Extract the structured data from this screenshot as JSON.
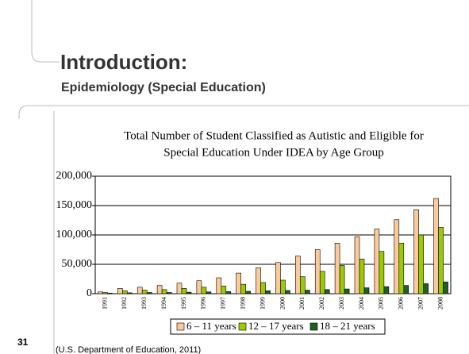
{
  "slide": {
    "title": "Introduction:",
    "subtitle": "Epidemiology (Special Education)",
    "number": "31",
    "source": "(U.S. Department of Education, 2011)"
  },
  "chart_data": {
    "type": "bar",
    "title_lines": [
      "Total Number of Student Classified as Autistic and Eligible for",
      "Special Education Under IDEA by Age Group"
    ],
    "categories": [
      "1991",
      "1992",
      "1993",
      "1994",
      "1995",
      "1996",
      "1997",
      "1998",
      "1999",
      "2000",
      "2001",
      "2002",
      "2003",
      "2004",
      "2005",
      "2006",
      "2007",
      "2008"
    ],
    "series": [
      {
        "name": "6 – 11 years",
        "color": "#fbc99a",
        "values": [
          3000,
          9000,
          11000,
          14000,
          18000,
          22000,
          27000,
          35000,
          44000,
          53000,
          64000,
          75000,
          86000,
          97000,
          110000,
          126000,
          143000,
          162000
        ]
      },
      {
        "name": "12 – 17 years",
        "color": "#99cc00",
        "values": [
          2000,
          5000,
          6000,
          7000,
          9000,
          11000,
          13000,
          16000,
          19000,
          23000,
          29000,
          38000,
          48000,
          59000,
          72000,
          86000,
          100000,
          113000
        ]
      },
      {
        "name": "18 – 21 years",
        "color": "#1f5f1f",
        "values": [
          1000,
          1500,
          2000,
          2000,
          2500,
          3000,
          3500,
          4000,
          5000,
          5500,
          6000,
          7000,
          8000,
          10000,
          12000,
          14000,
          17000,
          20000
        ]
      }
    ],
    "ylim": [
      0,
      200000
    ],
    "yticks": [
      0,
      {
        "value": 50000,
        "label": "50,000"
      },
      {
        "value": 100000,
        "label": "100,000"
      },
      {
        "value": 150000,
        "label": "150,000"
      },
      {
        "value": 200000,
        "label": "200,000"
      }
    ],
    "grid": true,
    "legend": "bottom"
  }
}
